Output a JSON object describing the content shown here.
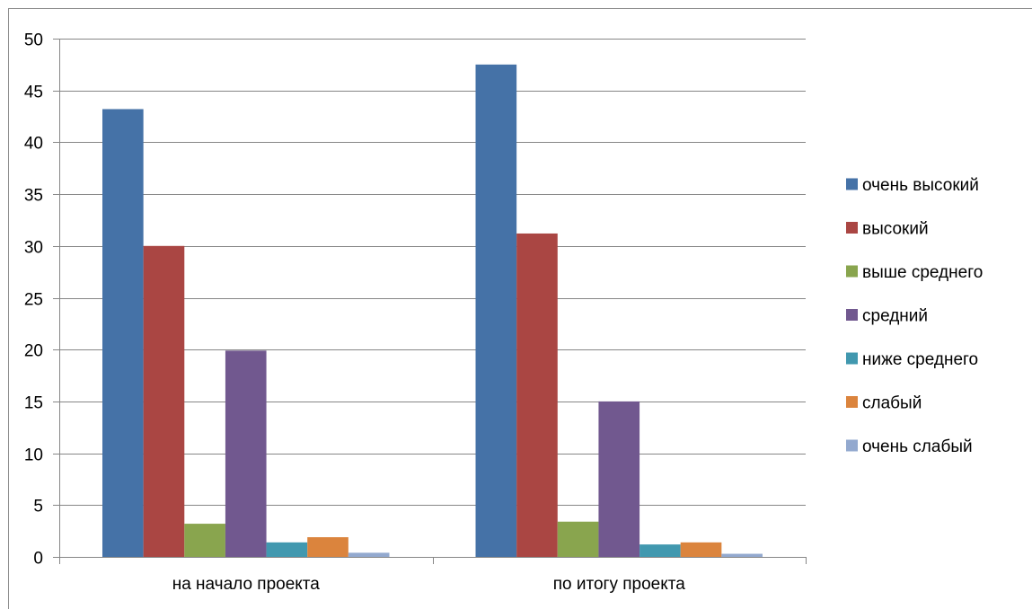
{
  "chart_data": {
    "type": "bar",
    "title": "",
    "xlabel": "",
    "ylabel": "",
    "categories": [
      "на начало проекта",
      "по итогу проекта"
    ],
    "ylim": [
      0,
      50
    ],
    "yticks": [
      0,
      5,
      10,
      15,
      20,
      25,
      30,
      35,
      40,
      45,
      50
    ],
    "grid": true,
    "legend_position": "right",
    "series": [
      {
        "name": "очень высокий",
        "color": "#4572A7",
        "values": [
          43.2,
          47.5
        ]
      },
      {
        "name": "высокий",
        "color": "#AA4643",
        "values": [
          30.0,
          31.2
        ]
      },
      {
        "name": "выше среднего",
        "color": "#89A54E",
        "values": [
          3.2,
          3.4
        ]
      },
      {
        "name": "средний",
        "color": "#71588F",
        "values": [
          19.9,
          15.0
        ]
      },
      {
        "name": "ниже среднего",
        "color": "#4198AF",
        "values": [
          1.4,
          1.2
        ]
      },
      {
        "name": "слабый",
        "color": "#DB843D",
        "values": [
          1.9,
          1.4
        ]
      },
      {
        "name": "очень слабый",
        "color": "#93A9CF",
        "values": [
          0.4,
          0.3
        ]
      }
    ]
  }
}
